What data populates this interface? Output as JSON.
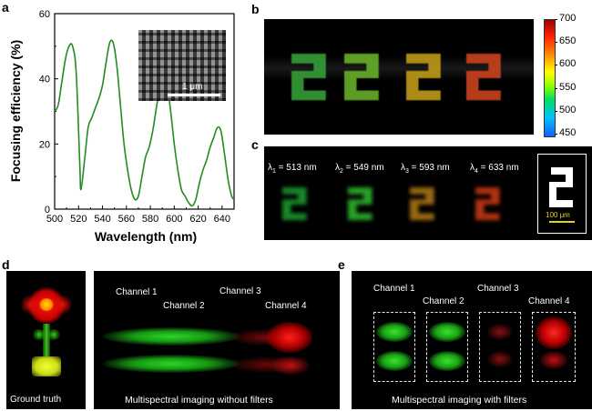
{
  "panels": {
    "a": "a",
    "b": "b",
    "c": "c",
    "d": "d",
    "e": "e"
  },
  "chart_data": {
    "type": "line",
    "title": "",
    "xlabel": "Wavelength (nm)",
    "ylabel": "Focusing efficiency (%)",
    "xlim": [
      500,
      650
    ],
    "ylim": [
      0,
      60
    ],
    "xticks": [
      "500",
      "520",
      "540",
      "560",
      "580",
      "600",
      "620",
      "640"
    ],
    "yticks": [
      "0",
      "20",
      "40",
      "60"
    ],
    "grid": false,
    "color": "#228b22",
    "x": [
      500,
      503,
      506,
      509,
      512,
      515,
      518,
      521,
      522,
      525,
      528,
      531,
      534,
      537,
      540,
      543,
      546,
      549,
      552,
      555,
      558,
      561,
      564,
      567,
      570,
      573,
      576,
      579,
      582,
      585,
      588,
      591,
      594,
      597,
      600,
      603,
      606,
      609,
      612,
      615,
      618,
      621,
      624,
      627,
      630,
      633,
      636,
      639,
      642,
      645,
      648,
      650
    ],
    "y": [
      30,
      32,
      39,
      46,
      50,
      50,
      42,
      14,
      6,
      15,
      25,
      28,
      31,
      34,
      38,
      45,
      51,
      51,
      44,
      32,
      20,
      12,
      6,
      3,
      4,
      10,
      16,
      19,
      24,
      31,
      37,
      40,
      38,
      30,
      20,
      12,
      6,
      4,
      2,
      1,
      3,
      8,
      12,
      15,
      19,
      22,
      25,
      24,
      17,
      9,
      4,
      3
    ],
    "inset_scalebar": "1 μm"
  },
  "colorbar": {
    "ticks": [
      "700",
      "650",
      "600",
      "550",
      "500",
      "450"
    ]
  },
  "panel_c": {
    "channels": [
      {
        "sym": "λ",
        "sub": "1",
        "text": " = 513 nm"
      },
      {
        "sym": "λ",
        "sub": "2",
        "text": " = 549 nm"
      },
      {
        "sym": "λ",
        "sub": "3",
        "text": " = 593 nm"
      },
      {
        "sym": "λ",
        "sub": "4",
        "text": " = 633 nm"
      }
    ],
    "scalebar": "100 μm"
  },
  "panel_d": {
    "ground_truth": "Ground truth",
    "caption": "Multispectral imaging without filters",
    "channel_labels": [
      "Channel 1",
      "Channel 2",
      "Channel 3",
      "Channel 4"
    ]
  },
  "panel_e": {
    "caption": "Multispectral imaging with filters",
    "channel_labels": [
      "Channel 1",
      "Channel 2",
      "Channel 3",
      "Channel 4"
    ]
  }
}
